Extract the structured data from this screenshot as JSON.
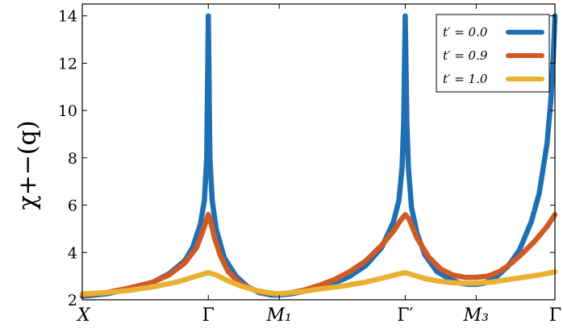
{
  "chart_data": {
    "type": "line",
    "ylabel": "χ+−(q)",
    "ylim": [
      2,
      14.5
    ],
    "yticks": [
      "2",
      "4",
      "6",
      "8",
      "10",
      "12",
      "14"
    ],
    "xlim": [
      0,
      6
    ],
    "xticks": [
      {
        "label": "X",
        "pos": 0
      },
      {
        "label": "Γ",
        "pos": 1.6
      },
      {
        "label": "M₁",
        "pos": 2.5
      },
      {
        "label": "Γ′",
        "pos": 4.1
      },
      {
        "label": "M₃",
        "pos": 5.0
      },
      {
        "label": "Γ",
        "pos": 6.0
      }
    ],
    "legend_position": "top-right",
    "grid": false,
    "series": [
      {
        "name": "t′ = 0.0",
        "color": "#1f6fb4",
        "x": [
          0,
          0.3,
          0.6,
          0.9,
          1.1,
          1.3,
          1.4,
          1.5,
          1.55,
          1.58,
          1.6,
          1.62,
          1.65,
          1.7,
          1.8,
          1.95,
          2.1,
          2.25,
          2.4,
          2.5,
          2.65,
          2.8,
          3.0,
          3.2,
          3.4,
          3.6,
          3.8,
          3.95,
          4.02,
          4.06,
          4.08,
          4.1,
          4.12,
          4.14,
          4.18,
          4.25,
          4.35,
          4.5,
          4.65,
          4.8,
          4.9,
          5.0,
          5.1,
          5.25,
          5.4,
          5.55,
          5.7,
          5.8,
          5.9,
          5.95,
          5.98,
          6.0
        ],
        "y": [
          2.15,
          2.25,
          2.45,
          2.75,
          3.1,
          3.65,
          4.2,
          5.2,
          6.2,
          8.0,
          14.0,
          8.0,
          6.2,
          5.0,
          3.8,
          3.0,
          2.55,
          2.3,
          2.2,
          2.2,
          2.25,
          2.35,
          2.5,
          2.7,
          3.0,
          3.45,
          4.2,
          5.3,
          6.2,
          7.6,
          9.5,
          14.0,
          9.5,
          7.6,
          5.9,
          4.8,
          3.9,
          3.2,
          2.9,
          2.7,
          2.65,
          2.65,
          2.7,
          2.95,
          3.4,
          4.1,
          5.3,
          6.5,
          8.6,
          10.5,
          12.3,
          14.0
        ]
      },
      {
        "name": "t′ = 0.9",
        "color": "#d05a24",
        "x": [
          0,
          0.3,
          0.6,
          0.9,
          1.1,
          1.3,
          1.45,
          1.53,
          1.58,
          1.6,
          1.63,
          1.68,
          1.75,
          1.85,
          2.0,
          2.15,
          2.3,
          2.5,
          2.65,
          2.8,
          3.0,
          3.2,
          3.4,
          3.6,
          3.8,
          3.95,
          4.05,
          4.1,
          4.15,
          4.25,
          4.4,
          4.55,
          4.7,
          4.85,
          5.0,
          5.15,
          5.3,
          5.45,
          5.6,
          5.75,
          5.9,
          6.0
        ],
        "y": [
          2.2,
          2.3,
          2.5,
          2.75,
          3.05,
          3.55,
          4.2,
          4.9,
          5.4,
          5.6,
          5.3,
          4.6,
          3.9,
          3.2,
          2.7,
          2.45,
          2.3,
          2.25,
          2.3,
          2.4,
          2.6,
          2.85,
          3.2,
          3.65,
          4.3,
          4.9,
          5.4,
          5.6,
          5.4,
          4.6,
          3.8,
          3.3,
          3.05,
          2.95,
          2.95,
          3.0,
          3.2,
          3.55,
          4.0,
          4.5,
          5.1,
          5.6
        ]
      },
      {
        "name": "t′ = 1.0",
        "color": "#e9b034",
        "x": [
          0,
          0.3,
          0.6,
          0.9,
          1.2,
          1.4,
          1.5,
          1.6,
          1.7,
          1.85,
          2.0,
          2.2,
          2.4,
          2.5,
          2.6,
          2.8,
          3.0,
          3.3,
          3.6,
          3.85,
          4.0,
          4.1,
          4.2,
          4.35,
          4.5,
          4.7,
          4.85,
          5.0,
          5.2,
          5.4,
          5.6,
          5.8,
          6.0
        ],
        "y": [
          2.25,
          2.3,
          2.4,
          2.55,
          2.75,
          2.95,
          3.05,
          3.15,
          3.05,
          2.8,
          2.6,
          2.4,
          2.28,
          2.25,
          2.28,
          2.35,
          2.45,
          2.58,
          2.75,
          2.95,
          3.08,
          3.15,
          3.05,
          2.9,
          2.8,
          2.72,
          2.7,
          2.7,
          2.75,
          2.85,
          2.95,
          3.05,
          3.18
        ]
      }
    ]
  }
}
